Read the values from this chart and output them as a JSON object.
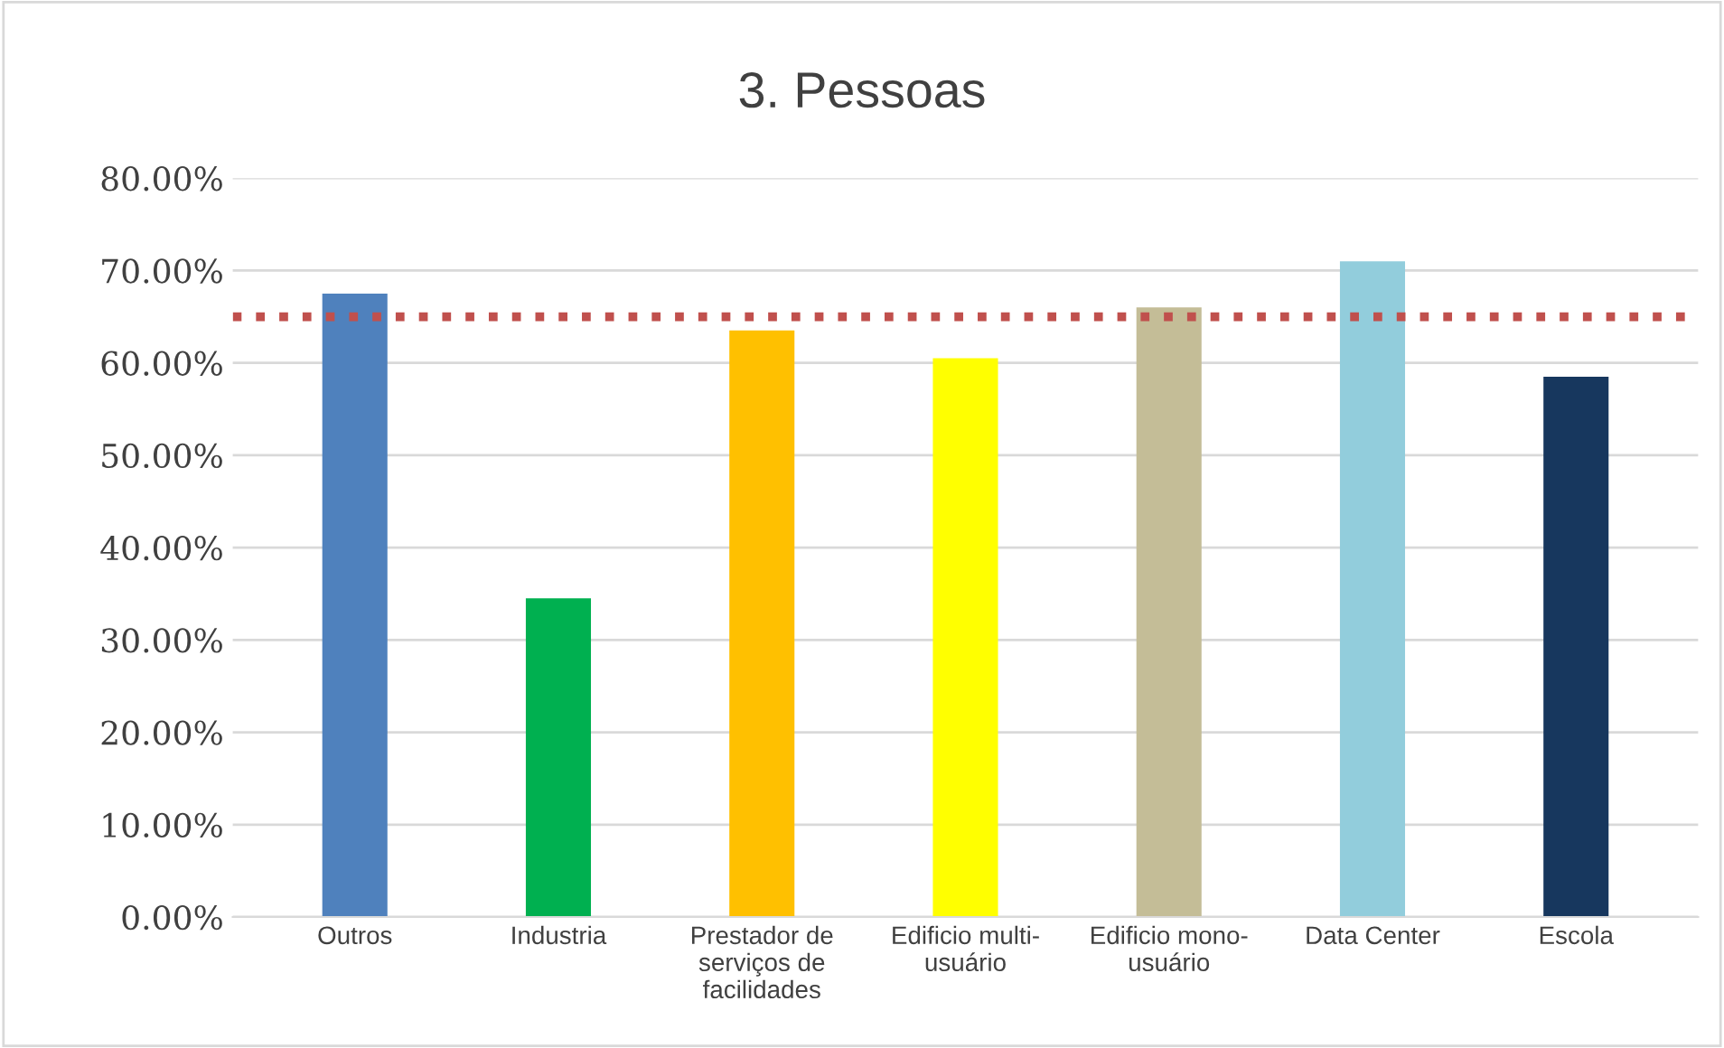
{
  "chart_data": {
    "type": "bar",
    "title": "3. Pessoas",
    "categories": [
      "Outros",
      "Industria",
      "Prestador de\nserviços de\nfacilidades",
      "Edificio multi-\nusuário",
      "Edificio mono-\nusuário",
      "Data Center",
      "Escola"
    ],
    "values": [
      67.5,
      34.5,
      63.5,
      60.5,
      66,
      71,
      58.5
    ],
    "colors": [
      "#4f81bd",
      "#00b050",
      "#ffc000",
      "#ffff00",
      "#c4bd97",
      "#92cddc",
      "#17375e"
    ],
    "ylim": [
      0,
      80
    ],
    "yticks": [
      {
        "value": 0,
        "label": "0.00%"
      },
      {
        "value": 10,
        "label": "10.00%"
      },
      {
        "value": 20,
        "label": "20.00%"
      },
      {
        "value": 30,
        "label": "30.00%"
      },
      {
        "value": 40,
        "label": "40.00%"
      },
      {
        "value": 50,
        "label": "50.00%"
      },
      {
        "value": 60,
        "label": "60.00%"
      },
      {
        "value": 70,
        "label": "70.00%"
      },
      {
        "value": 80,
        "label": "80.00%"
      }
    ],
    "ref_lines": [
      {
        "axis": "y",
        "value": 65,
        "color": "#c0504d",
        "line_style": "dotted"
      }
    ],
    "grid": "y"
  }
}
